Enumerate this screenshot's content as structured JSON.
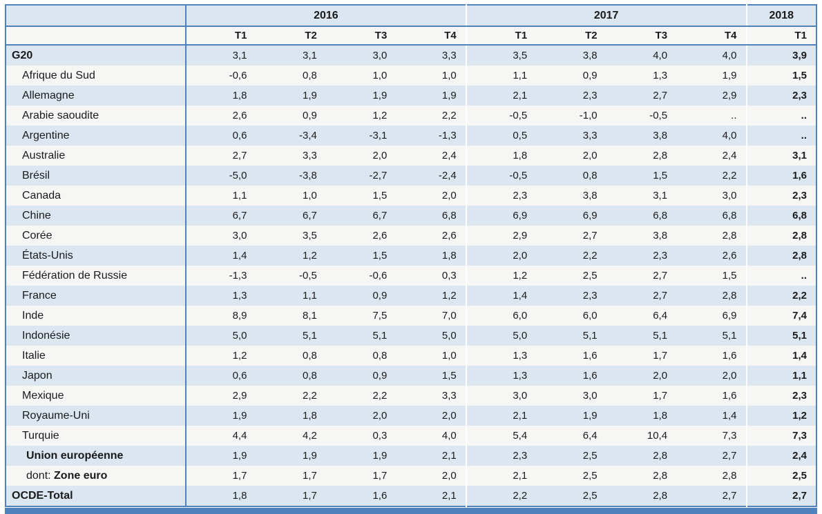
{
  "colors": {
    "border_blue": "#4f81bd",
    "band_blue": "#dce6f1",
    "band_light": "#f6f6f5",
    "bottom_bar_blue": "#4f81bd",
    "text": "#1a1a1a"
  },
  "table": {
    "year_groups": [
      {
        "label": "2016",
        "quarters": [
          "T1",
          "T2",
          "T3",
          "T4"
        ]
      },
      {
        "label": "2017",
        "quarters": [
          "T1",
          "T2",
          "T3",
          "T4"
        ]
      },
      {
        "label": "2018",
        "quarters": [
          "T1"
        ]
      }
    ],
    "rows": [
      {
        "label": "G20",
        "bold": true,
        "indent": 0,
        "values": [
          "3,1",
          "3,1",
          "3,0",
          "3,3",
          "3,5",
          "3,8",
          "4,0",
          "4,0",
          "3,9"
        ]
      },
      {
        "label": "Afrique du Sud",
        "bold": false,
        "indent": 1,
        "values": [
          "-0,6",
          "0,8",
          "1,0",
          "1,0",
          "1,1",
          "0,9",
          "1,3",
          "1,9",
          "1,5"
        ]
      },
      {
        "label": "Allemagne",
        "bold": false,
        "indent": 1,
        "values": [
          "1,8",
          "1,9",
          "1,9",
          "1,9",
          "2,1",
          "2,3",
          "2,7",
          "2,9",
          "2,3"
        ]
      },
      {
        "label": "Arabie saoudite",
        "bold": false,
        "indent": 1,
        "values": [
          "2,6",
          "0,9",
          "1,2",
          "2,2",
          "-0,5",
          "-1,0",
          "-0,5",
          "..",
          ".."
        ]
      },
      {
        "label": "Argentine",
        "bold": false,
        "indent": 1,
        "values": [
          "0,6",
          "-3,4",
          "-3,1",
          "-1,3",
          "0,5",
          "3,3",
          "3,8",
          "4,0",
          ".."
        ]
      },
      {
        "label": "Australie",
        "bold": false,
        "indent": 1,
        "values": [
          "2,7",
          "3,3",
          "2,0",
          "2,4",
          "1,8",
          "2,0",
          "2,8",
          "2,4",
          "3,1"
        ]
      },
      {
        "label": "Brésil",
        "bold": false,
        "indent": 1,
        "values": [
          "-5,0",
          "-3,8",
          "-2,7",
          "-2,4",
          "-0,5",
          "0,8",
          "1,5",
          "2,2",
          "1,6"
        ]
      },
      {
        "label": "Canada",
        "bold": false,
        "indent": 1,
        "values": [
          "1,1",
          "1,0",
          "1,5",
          "2,0",
          "2,3",
          "3,8",
          "3,1",
          "3,0",
          "2,3"
        ]
      },
      {
        "label": "Chine",
        "bold": false,
        "indent": 1,
        "values": [
          "6,7",
          "6,7",
          "6,7",
          "6,8",
          "6,9",
          "6,9",
          "6,8",
          "6,8",
          "6,8"
        ]
      },
      {
        "label": "Corée",
        "bold": false,
        "indent": 1,
        "values": [
          "3,0",
          "3,5",
          "2,6",
          "2,6",
          "2,9",
          "2,7",
          "3,8",
          "2,8",
          "2,8"
        ]
      },
      {
        "label": "États-Unis",
        "bold": false,
        "indent": 1,
        "values": [
          "1,4",
          "1,2",
          "1,5",
          "1,8",
          "2,0",
          "2,2",
          "2,3",
          "2,6",
          "2,8"
        ]
      },
      {
        "label": "Fédération de Russie",
        "bold": false,
        "indent": 1,
        "values": [
          "-1,3",
          "-0,5",
          "-0,6",
          "0,3",
          "1,2",
          "2,5",
          "2,7",
          "1,5",
          ".."
        ]
      },
      {
        "label": "France",
        "bold": false,
        "indent": 1,
        "values": [
          "1,3",
          "1,1",
          "0,9",
          "1,2",
          "1,4",
          "2,3",
          "2,7",
          "2,8",
          "2,2"
        ]
      },
      {
        "label": "Inde",
        "bold": false,
        "indent": 1,
        "values": [
          "8,9",
          "8,1",
          "7,5",
          "7,0",
          "6,0",
          "6,0",
          "6,4",
          "6,9",
          "7,4"
        ]
      },
      {
        "label": "Indonésie",
        "bold": false,
        "indent": 1,
        "values": [
          "5,0",
          "5,1",
          "5,1",
          "5,0",
          "5,0",
          "5,1",
          "5,1",
          "5,1",
          "5,1"
        ]
      },
      {
        "label": "Italie",
        "bold": false,
        "indent": 1,
        "values": [
          "1,2",
          "0,8",
          "0,8",
          "1,0",
          "1,3",
          "1,6",
          "1,7",
          "1,6",
          "1,4"
        ]
      },
      {
        "label": "Japon",
        "bold": false,
        "indent": 1,
        "values": [
          "0,6",
          "0,8",
          "0,9",
          "1,5",
          "1,3",
          "1,6",
          "2,0",
          "2,0",
          "1,1"
        ]
      },
      {
        "label": "Mexique",
        "bold": false,
        "indent": 1,
        "values": [
          "2,9",
          "2,2",
          "2,2",
          "3,3",
          "3,0",
          "3,0",
          "1,7",
          "1,6",
          "2,3"
        ]
      },
      {
        "label": "Royaume-Uni",
        "bold": false,
        "indent": 1,
        "values": [
          "1,9",
          "1,8",
          "2,0",
          "2,0",
          "2,1",
          "1,9",
          "1,8",
          "1,4",
          "1,2"
        ]
      },
      {
        "label": "Turquie",
        "bold": false,
        "indent": 1,
        "values": [
          "4,4",
          "4,2",
          "0,3",
          "4,0",
          "5,4",
          "6,4",
          "10,4",
          "7,3",
          "7,3"
        ]
      },
      {
        "label": "Union européenne",
        "bold": true,
        "indent": 2,
        "values": [
          "1,9",
          "1,9",
          "1,9",
          "2,1",
          "2,3",
          "2,5",
          "2,8",
          "2,7",
          "2,4"
        ]
      },
      {
        "label_prefix": "dont: ",
        "label": "Zone euro",
        "bold": true,
        "indent": 2,
        "values": [
          "1,7",
          "1,7",
          "1,7",
          "2,0",
          "2,1",
          "2,5",
          "2,8",
          "2,8",
          "2,5"
        ]
      },
      {
        "label": "OCDE-Total",
        "bold": true,
        "indent": 0,
        "values": [
          "1,8",
          "1,7",
          "1,6",
          "2,1",
          "2,2",
          "2,5",
          "2,8",
          "2,7",
          "2,7"
        ]
      }
    ]
  }
}
